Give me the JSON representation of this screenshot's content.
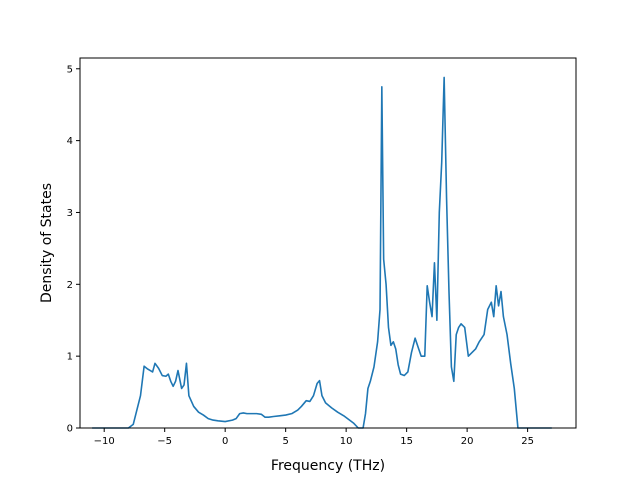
{
  "chart_data": {
    "type": "line",
    "title": "",
    "xlabel": "Frequency (THz)",
    "ylabel": "Density of States",
    "xlim": [
      -12.0,
      29.0
    ],
    "ylim": [
      0,
      5.15
    ],
    "xticks": [
      -10,
      -5,
      0,
      5,
      10,
      15,
      20,
      25
    ],
    "yticks": [
      0,
      1,
      2,
      3,
      4,
      5
    ],
    "grid": false,
    "legend": "none",
    "series": [
      {
        "color": "#1f77b4",
        "x": [
          -11.0,
          -8.0,
          -7.6,
          -7.3,
          -7.0,
          -6.7,
          -6.4,
          -6.0,
          -5.8,
          -5.5,
          -5.2,
          -4.9,
          -4.7,
          -4.5,
          -4.3,
          -4.1,
          -3.9,
          -3.6,
          -3.4,
          -3.2,
          -3.0,
          -2.6,
          -2.2,
          -1.8,
          -1.4,
          -1.0,
          -0.6,
          0.0,
          0.6,
          0.9,
          1.2,
          1.5,
          1.8,
          2.2,
          2.6,
          3.0,
          3.3,
          3.6,
          4.0,
          4.5,
          5.0,
          5.5,
          6.0,
          6.3,
          6.7,
          7.0,
          7.3,
          7.6,
          7.8,
          8.0,
          8.3,
          8.8,
          9.3,
          9.8,
          10.2,
          10.6,
          11.0,
          11.4,
          11.6,
          11.8,
          12.0,
          12.3,
          12.6,
          12.8,
          12.95,
          13.1,
          13.3,
          13.5,
          13.7,
          13.9,
          14.1,
          14.3,
          14.5,
          14.8,
          15.1,
          15.4,
          15.7,
          16.0,
          16.2,
          16.5,
          16.7,
          16.9,
          17.1,
          17.3,
          17.5,
          17.7,
          17.9,
          18.1,
          18.3,
          18.5,
          18.7,
          18.9,
          19.1,
          19.3,
          19.5,
          19.8,
          20.1,
          20.4,
          20.7,
          21.0,
          21.4,
          21.7,
          22.0,
          22.2,
          22.4,
          22.6,
          22.8,
          23.0,
          23.3,
          23.6,
          23.9,
          24.2,
          25.0,
          27.0
        ],
        "y": [
          0.0,
          0.0,
          0.05,
          0.25,
          0.45,
          0.86,
          0.82,
          0.78,
          0.9,
          0.83,
          0.73,
          0.72,
          0.75,
          0.65,
          0.58,
          0.65,
          0.8,
          0.55,
          0.6,
          0.9,
          0.45,
          0.3,
          0.22,
          0.18,
          0.13,
          0.11,
          0.1,
          0.09,
          0.11,
          0.13,
          0.2,
          0.21,
          0.2,
          0.2,
          0.2,
          0.19,
          0.15,
          0.15,
          0.16,
          0.17,
          0.18,
          0.2,
          0.25,
          0.3,
          0.38,
          0.37,
          0.45,
          0.62,
          0.66,
          0.45,
          0.35,
          0.28,
          0.22,
          0.17,
          0.12,
          0.07,
          0.0,
          0.0,
          0.2,
          0.55,
          0.65,
          0.85,
          1.2,
          1.65,
          4.75,
          2.35,
          2.0,
          1.4,
          1.15,
          1.2,
          1.1,
          0.88,
          0.75,
          0.73,
          0.78,
          1.05,
          1.25,
          1.1,
          1.0,
          1.0,
          1.98,
          1.75,
          1.55,
          2.3,
          1.5,
          3.0,
          3.7,
          4.88,
          3.2,
          1.9,
          0.85,
          0.65,
          1.3,
          1.4,
          1.45,
          1.4,
          1.0,
          1.05,
          1.1,
          1.2,
          1.3,
          1.65,
          1.75,
          1.55,
          1.98,
          1.7,
          1.9,
          1.55,
          1.3,
          0.9,
          0.55,
          0.0,
          0.0,
          0.0
        ]
      }
    ]
  }
}
